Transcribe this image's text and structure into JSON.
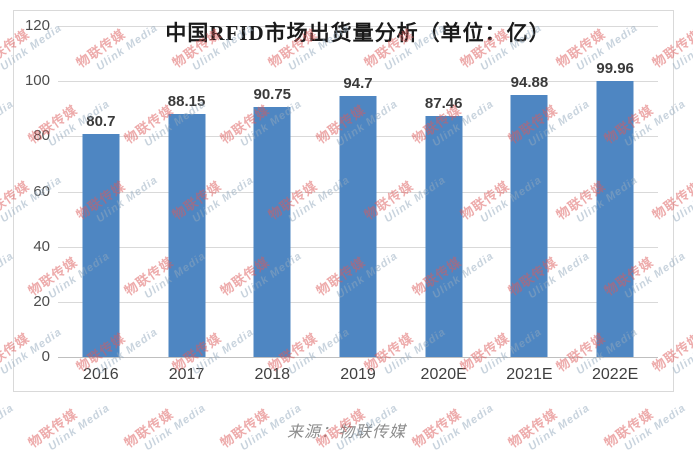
{
  "chart_data": {
    "type": "bar",
    "title": "中国RFID市场出货量分析（单位：亿）",
    "categories": [
      "2016",
      "2017",
      "2018",
      "2019",
      "2020E",
      "2021E",
      "2022E"
    ],
    "values": [
      80.7,
      88.15,
      90.75,
      94.7,
      87.46,
      94.88,
      99.96
    ],
    "value_labels": [
      "80.7",
      "88.15",
      "90.75",
      "94.7",
      "87.46",
      "94.88",
      "99.96"
    ],
    "xlabel": "",
    "ylabel": "",
    "ylim": [
      0,
      120
    ],
    "yticks": [
      0,
      20,
      40,
      60,
      80,
      100,
      120
    ],
    "grid": true,
    "legend": "none",
    "bar_color": "#4e86c2"
  },
  "source_caption": "来源：物联传媒",
  "watermark": {
    "text_cn": "物联传媒",
    "text_en": "Ulink Media",
    "color_cn": "#dd5a5a",
    "color_en": "#93a9bd"
  },
  "colors": {
    "grid": "#d9d9d9",
    "axis_line": "#bfbfbf",
    "tick_text": "#4d4d4d",
    "value_text": "#3a3a3a",
    "title_text": "#1a1a1a",
    "background": "#ffffff"
  }
}
